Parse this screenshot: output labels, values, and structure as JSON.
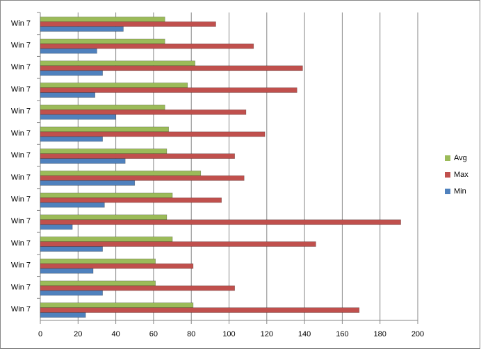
{
  "chart_data": {
    "type": "bar",
    "orientation": "horizontal",
    "categories": [
      "Win 7",
      "Win 7",
      "Win 7",
      "Win 7",
      "Win 7",
      "Win 7",
      "Win 7",
      "Win 7",
      "Win 7",
      "Win 7",
      "Win 7",
      "Win 7",
      "Win 7",
      "Win 7"
    ],
    "series": [
      {
        "name": "Avg",
        "color": "#9bbb59",
        "values": [
          66,
          66,
          82,
          78,
          66,
          68,
          67,
          85,
          70,
          67,
          70,
          61,
          61,
          81
        ]
      },
      {
        "name": "Max",
        "color": "#c0504d",
        "values": [
          93,
          113,
          139,
          136,
          109,
          119,
          103,
          108,
          96,
          191,
          146,
          81,
          103,
          169
        ]
      },
      {
        "name": "Min",
        "color": "#4f81bd",
        "values": [
          44,
          30,
          33,
          29,
          40,
          33,
          45,
          50,
          34,
          17,
          33,
          28,
          33,
          24
        ]
      }
    ],
    "xlim": [
      0,
      200
    ],
    "xticks": [
      0,
      20,
      40,
      60,
      80,
      100,
      120,
      140,
      160,
      180,
      200
    ],
    "grid": true,
    "legend": "right"
  }
}
